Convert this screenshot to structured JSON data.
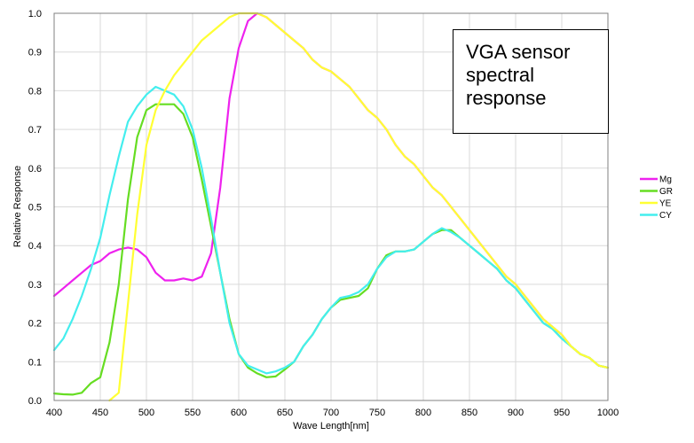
{
  "chart_data": {
    "type": "line",
    "title": "",
    "annotation": "VGA sensor spectral response",
    "xlabel": "Wave Length[nm]",
    "ylabel": "Relative Response",
    "xlim": [
      400,
      1000
    ],
    "ylim": [
      0.0,
      1.0
    ],
    "x_ticks": [
      "400",
      "450",
      "500",
      "550",
      "600",
      "650",
      "700",
      "750",
      "800",
      "850",
      "900",
      "950",
      "1000"
    ],
    "y_ticks": [
      "0.0",
      "0.1",
      "0.2",
      "0.3",
      "0.4",
      "0.5",
      "0.6",
      "0.7",
      "0.8",
      "0.9",
      "1.0"
    ],
    "grid": true,
    "legend_position": "right",
    "series": [
      {
        "name": "Mg",
        "color": "#ee22ee",
        "x": [
          400,
          410,
          420,
          430,
          440,
          450,
          460,
          470,
          480,
          490,
          500,
          510,
          520,
          530,
          540,
          550,
          560,
          570,
          580,
          590,
          600,
          610,
          620,
          630,
          640,
          650,
          660,
          670,
          680,
          690,
          700,
          710,
          720,
          730,
          740,
          750,
          760,
          770,
          780,
          790,
          800,
          810,
          820,
          830,
          840,
          850,
          860,
          870,
          880,
          890,
          900,
          910,
          920,
          930,
          940,
          950,
          960,
          970,
          980,
          990,
          1000
        ],
        "values": [
          0.27,
          0.29,
          0.31,
          0.33,
          0.35,
          0.36,
          0.38,
          0.39,
          0.395,
          0.39,
          0.37,
          0.33,
          0.31,
          0.31,
          0.315,
          0.31,
          0.32,
          0.38,
          0.55,
          0.78,
          0.91,
          0.98,
          1.0,
          0.99,
          0.97,
          0.95,
          0.93,
          0.91,
          0.88,
          0.86,
          0.85,
          0.83,
          0.81,
          0.78,
          0.75,
          0.73,
          0.7,
          0.66,
          0.63,
          0.61,
          0.58,
          0.55,
          0.53,
          0.5,
          0.47,
          0.44,
          0.41,
          0.38,
          0.35,
          0.32,
          0.3,
          0.27,
          0.24,
          0.21,
          0.19,
          0.17,
          0.14,
          0.12,
          0.11,
          0.09,
          0.085
        ]
      },
      {
        "name": "GR",
        "color": "#66dd22",
        "x": [
          400,
          410,
          420,
          430,
          440,
          450,
          460,
          470,
          480,
          490,
          500,
          510,
          520,
          530,
          540,
          550,
          560,
          570,
          580,
          590,
          600,
          610,
          620,
          630,
          640,
          650,
          660,
          670,
          680,
          690,
          700,
          710,
          720,
          730,
          740,
          750,
          760,
          770,
          780,
          790,
          800,
          810,
          820,
          830,
          840,
          850,
          860,
          870,
          880,
          890,
          900,
          910,
          920,
          930,
          940,
          950,
          960,
          970,
          980,
          990,
          1000
        ],
        "values": [
          0.018,
          0.016,
          0.015,
          0.02,
          0.045,
          0.06,
          0.15,
          0.3,
          0.52,
          0.68,
          0.75,
          0.765,
          0.765,
          0.765,
          0.74,
          0.68,
          0.57,
          0.45,
          0.33,
          0.21,
          0.12,
          0.085,
          0.07,
          0.06,
          0.062,
          0.08,
          0.1,
          0.14,
          0.17,
          0.21,
          0.24,
          0.26,
          0.265,
          0.27,
          0.29,
          0.34,
          0.375,
          0.385,
          0.385,
          0.39,
          0.41,
          0.43,
          0.44,
          0.44,
          0.42,
          0.4,
          0.38,
          0.36,
          0.34,
          0.31,
          0.29,
          0.26,
          0.23,
          0.2,
          0.185,
          0.16,
          0.14,
          0.12,
          0.11,
          0.09,
          0.085
        ]
      },
      {
        "name": "YE",
        "color": "#ffff33",
        "x": [
          400,
          410,
          420,
          430,
          440,
          450,
          460,
          470,
          480,
          490,
          500,
          510,
          520,
          530,
          540,
          550,
          560,
          570,
          580,
          590,
          600,
          610,
          620,
          630,
          640,
          650,
          660,
          670,
          680,
          690,
          700,
          710,
          720,
          730,
          740,
          750,
          760,
          770,
          780,
          790,
          800,
          810,
          820,
          830,
          840,
          850,
          860,
          870,
          880,
          890,
          900,
          910,
          920,
          930,
          940,
          950,
          960,
          970,
          980,
          990,
          1000
        ],
        "values": [
          0.0,
          0.0,
          0.0,
          0.0,
          0.0,
          0.0,
          0.0,
          0.02,
          0.25,
          0.48,
          0.66,
          0.75,
          0.8,
          0.84,
          0.87,
          0.9,
          0.93,
          0.95,
          0.97,
          0.99,
          1.0,
          1.0,
          1.0,
          0.99,
          0.97,
          0.95,
          0.93,
          0.91,
          0.88,
          0.86,
          0.85,
          0.83,
          0.81,
          0.78,
          0.75,
          0.73,
          0.7,
          0.66,
          0.63,
          0.61,
          0.58,
          0.55,
          0.53,
          0.5,
          0.47,
          0.44,
          0.41,
          0.38,
          0.35,
          0.32,
          0.3,
          0.27,
          0.24,
          0.21,
          0.19,
          0.17,
          0.14,
          0.12,
          0.11,
          0.09,
          0.085
        ]
      },
      {
        "name": "CY",
        "color": "#44eeee",
        "x": [
          400,
          410,
          420,
          430,
          440,
          450,
          460,
          470,
          480,
          490,
          500,
          510,
          520,
          530,
          540,
          550,
          560,
          570,
          580,
          590,
          600,
          610,
          620,
          630,
          640,
          650,
          660,
          670,
          680,
          690,
          700,
          710,
          720,
          730,
          740,
          750,
          760,
          770,
          780,
          790,
          800,
          810,
          820,
          830,
          840,
          850,
          860,
          870,
          880,
          890,
          900,
          910,
          920,
          930,
          940,
          950,
          960,
          970,
          980,
          990,
          1000
        ],
        "values": [
          0.13,
          0.16,
          0.21,
          0.27,
          0.34,
          0.42,
          0.53,
          0.63,
          0.72,
          0.76,
          0.79,
          0.81,
          0.8,
          0.79,
          0.76,
          0.7,
          0.6,
          0.47,
          0.33,
          0.2,
          0.12,
          0.09,
          0.08,
          0.07,
          0.075,
          0.085,
          0.1,
          0.14,
          0.17,
          0.21,
          0.24,
          0.265,
          0.27,
          0.28,
          0.3,
          0.34,
          0.37,
          0.385,
          0.385,
          0.39,
          0.41,
          0.43,
          0.445,
          0.435,
          0.42,
          0.4,
          0.38,
          0.36,
          0.34,
          0.31,
          0.29,
          0.26,
          0.23,
          0.2,
          0.185,
          0.16,
          0.14,
          0.12,
          0.11,
          0.09,
          0.085
        ]
      }
    ]
  }
}
